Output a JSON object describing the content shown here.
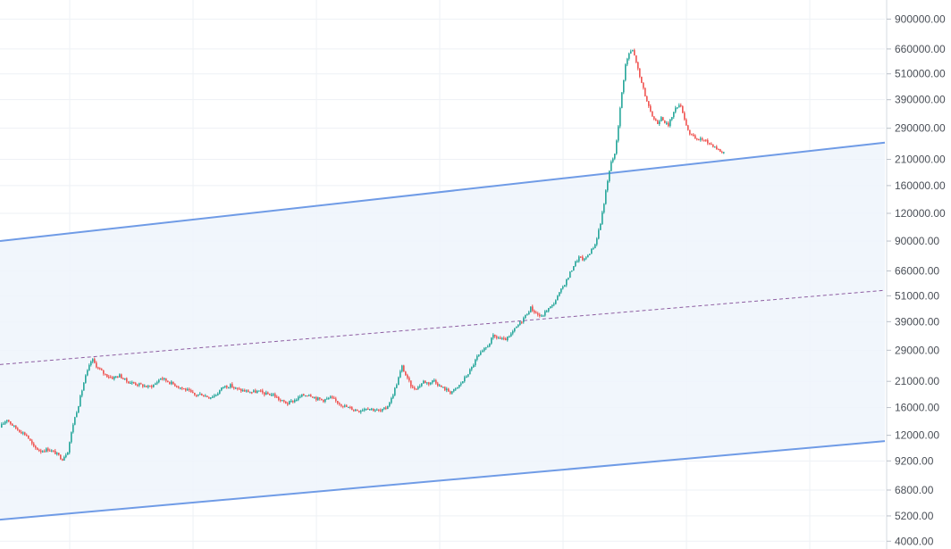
{
  "chart_data": {
    "type": "candlestick",
    "title": "",
    "xlabel": "",
    "ylabel": "",
    "y_scale": "log",
    "ylim": [
      3900,
      1000000
    ],
    "grid": true,
    "legend": "none",
    "y_tick_labels": [
      "900000.00",
      "660000.00",
      "510000.00",
      "390000.00",
      "290000.00",
      "210000.00",
      "160000.00",
      "120000.00",
      "90000.00",
      "66000.00",
      "51000.00",
      "39000.00",
      "29000.00",
      "21000.00",
      "16000.00",
      "12000.00",
      "9200.00",
      "6800.00",
      "5200.00",
      "4000.00"
    ],
    "price_series": [
      {
        "t": 0,
        "v": 13000
      },
      {
        "t": 8,
        "v": 14200
      },
      {
        "t": 15,
        "v": 13200
      },
      {
        "t": 22,
        "v": 12600
      },
      {
        "t": 30,
        "v": 12000
      },
      {
        "t": 38,
        "v": 10600
      },
      {
        "t": 46,
        "v": 10200
      },
      {
        "t": 54,
        "v": 10400
      },
      {
        "t": 62,
        "v": 10000
      },
      {
        "t": 70,
        "v": 9400
      },
      {
        "t": 76,
        "v": 10200
      },
      {
        "t": 82,
        "v": 13500
      },
      {
        "t": 88,
        "v": 16500
      },
      {
        "t": 95,
        "v": 21500
      },
      {
        "t": 103,
        "v": 26500
      },
      {
        "t": 110,
        "v": 24000
      },
      {
        "t": 118,
        "v": 22500
      },
      {
        "t": 126,
        "v": 21800
      },
      {
        "t": 134,
        "v": 22300
      },
      {
        "t": 142,
        "v": 21000
      },
      {
        "t": 150,
        "v": 20600
      },
      {
        "t": 158,
        "v": 20200
      },
      {
        "t": 166,
        "v": 19800
      },
      {
        "t": 173,
        "v": 20300
      },
      {
        "t": 180,
        "v": 21800
      },
      {
        "t": 190,
        "v": 20800
      },
      {
        "t": 200,
        "v": 19900
      },
      {
        "t": 210,
        "v": 19100
      },
      {
        "t": 218,
        "v": 18200
      },
      {
        "t": 226,
        "v": 18400
      },
      {
        "t": 234,
        "v": 17800
      },
      {
        "t": 242,
        "v": 18300
      },
      {
        "t": 250,
        "v": 19900
      },
      {
        "t": 258,
        "v": 20100
      },
      {
        "t": 266,
        "v": 19300
      },
      {
        "t": 274,
        "v": 19000
      },
      {
        "t": 282,
        "v": 18800
      },
      {
        "t": 290,
        "v": 18900
      },
      {
        "t": 298,
        "v": 18400
      },
      {
        "t": 306,
        "v": 18300
      },
      {
        "t": 314,
        "v": 17200
      },
      {
        "t": 322,
        "v": 16700
      },
      {
        "t": 330,
        "v": 17300
      },
      {
        "t": 338,
        "v": 18100
      },
      {
        "t": 346,
        "v": 18400
      },
      {
        "t": 354,
        "v": 17600
      },
      {
        "t": 362,
        "v": 17300
      },
      {
        "t": 370,
        "v": 17700
      },
      {
        "t": 378,
        "v": 16900
      },
      {
        "t": 386,
        "v": 16200
      },
      {
        "t": 394,
        "v": 15800
      },
      {
        "t": 402,
        "v": 15500
      },
      {
        "t": 410,
        "v": 16000
      },
      {
        "t": 418,
        "v": 15700
      },
      {
        "t": 426,
        "v": 15400
      },
      {
        "t": 432,
        "v": 15900
      },
      {
        "t": 438,
        "v": 17500
      },
      {
        "t": 444,
        "v": 20500
      },
      {
        "t": 450,
        "v": 24500
      },
      {
        "t": 456,
        "v": 21500
      },
      {
        "t": 462,
        "v": 19500
      },
      {
        "t": 468,
        "v": 19800
      },
      {
        "t": 474,
        "v": 21000
      },
      {
        "t": 480,
        "v": 20600
      },
      {
        "t": 486,
        "v": 21300
      },
      {
        "t": 492,
        "v": 20000
      },
      {
        "t": 498,
        "v": 19400
      },
      {
        "t": 504,
        "v": 18800
      },
      {
        "t": 510,
        "v": 19300
      },
      {
        "t": 516,
        "v": 20600
      },
      {
        "t": 522,
        "v": 22200
      },
      {
        "t": 528,
        "v": 24200
      },
      {
        "t": 534,
        "v": 27000
      },
      {
        "t": 540,
        "v": 28500
      },
      {
        "t": 546,
        "v": 30500
      },
      {
        "t": 552,
        "v": 33500
      },
      {
        "t": 558,
        "v": 33000
      },
      {
        "t": 564,
        "v": 32200
      },
      {
        "t": 570,
        "v": 33200
      },
      {
        "t": 576,
        "v": 36000
      },
      {
        "t": 582,
        "v": 38500
      },
      {
        "t": 588,
        "v": 41500
      },
      {
        "t": 594,
        "v": 45000
      },
      {
        "t": 600,
        "v": 42500
      },
      {
        "t": 606,
        "v": 41000
      },
      {
        "t": 612,
        "v": 44000
      },
      {
        "t": 618,
        "v": 46000
      },
      {
        "t": 624,
        "v": 50500
      },
      {
        "t": 630,
        "v": 56000
      },
      {
        "t": 636,
        "v": 62000
      },
      {
        "t": 642,
        "v": 70000
      },
      {
        "t": 648,
        "v": 76000
      },
      {
        "t": 654,
        "v": 74000
      },
      {
        "t": 660,
        "v": 80000
      },
      {
        "t": 666,
        "v": 87000
      },
      {
        "t": 672,
        "v": 108000
      },
      {
        "t": 678,
        "v": 150000
      },
      {
        "t": 684,
        "v": 205000
      },
      {
        "t": 688,
        "v": 220000
      },
      {
        "t": 692,
        "v": 300000
      },
      {
        "t": 696,
        "v": 420000
      },
      {
        "t": 700,
        "v": 560000
      },
      {
        "t": 704,
        "v": 630000
      },
      {
        "t": 708,
        "v": 650000
      },
      {
        "t": 712,
        "v": 580000
      },
      {
        "t": 716,
        "v": 490000
      },
      {
        "t": 720,
        "v": 440000
      },
      {
        "t": 724,
        "v": 380000
      },
      {
        "t": 728,
        "v": 340000
      },
      {
        "t": 732,
        "v": 320000
      },
      {
        "t": 736,
        "v": 305000
      },
      {
        "t": 740,
        "v": 330000
      },
      {
        "t": 744,
        "v": 310000
      },
      {
        "t": 748,
        "v": 295000
      },
      {
        "t": 752,
        "v": 330000
      },
      {
        "t": 756,
        "v": 355000
      },
      {
        "t": 760,
        "v": 375000
      },
      {
        "t": 764,
        "v": 345000
      },
      {
        "t": 768,
        "v": 300000
      },
      {
        "t": 772,
        "v": 275000
      },
      {
        "t": 776,
        "v": 265000
      },
      {
        "t": 780,
        "v": 255000
      },
      {
        "t": 784,
        "v": 262000
      },
      {
        "t": 788,
        "v": 255000
      },
      {
        "t": 792,
        "v": 250000
      },
      {
        "t": 796,
        "v": 246000
      },
      {
        "t": 800,
        "v": 240000
      },
      {
        "t": 804,
        "v": 232000
      },
      {
        "t": 808,
        "v": 226000
      }
    ],
    "regression_channel": {
      "upper": {
        "start": 90000,
        "end": 250000
      },
      "middle": {
        "start": 25000,
        "end": 54000
      },
      "lower": {
        "start": 5000,
        "end": 11300
      }
    },
    "colors": {
      "up": "#26a69a",
      "down": "#ef5350",
      "channel_line": "#6f9be6",
      "channel_fill": "#eef4fb",
      "mid_line": "#8e5ea2",
      "grid": "#eef1f5",
      "axis_text": "#4a4f57"
    }
  }
}
